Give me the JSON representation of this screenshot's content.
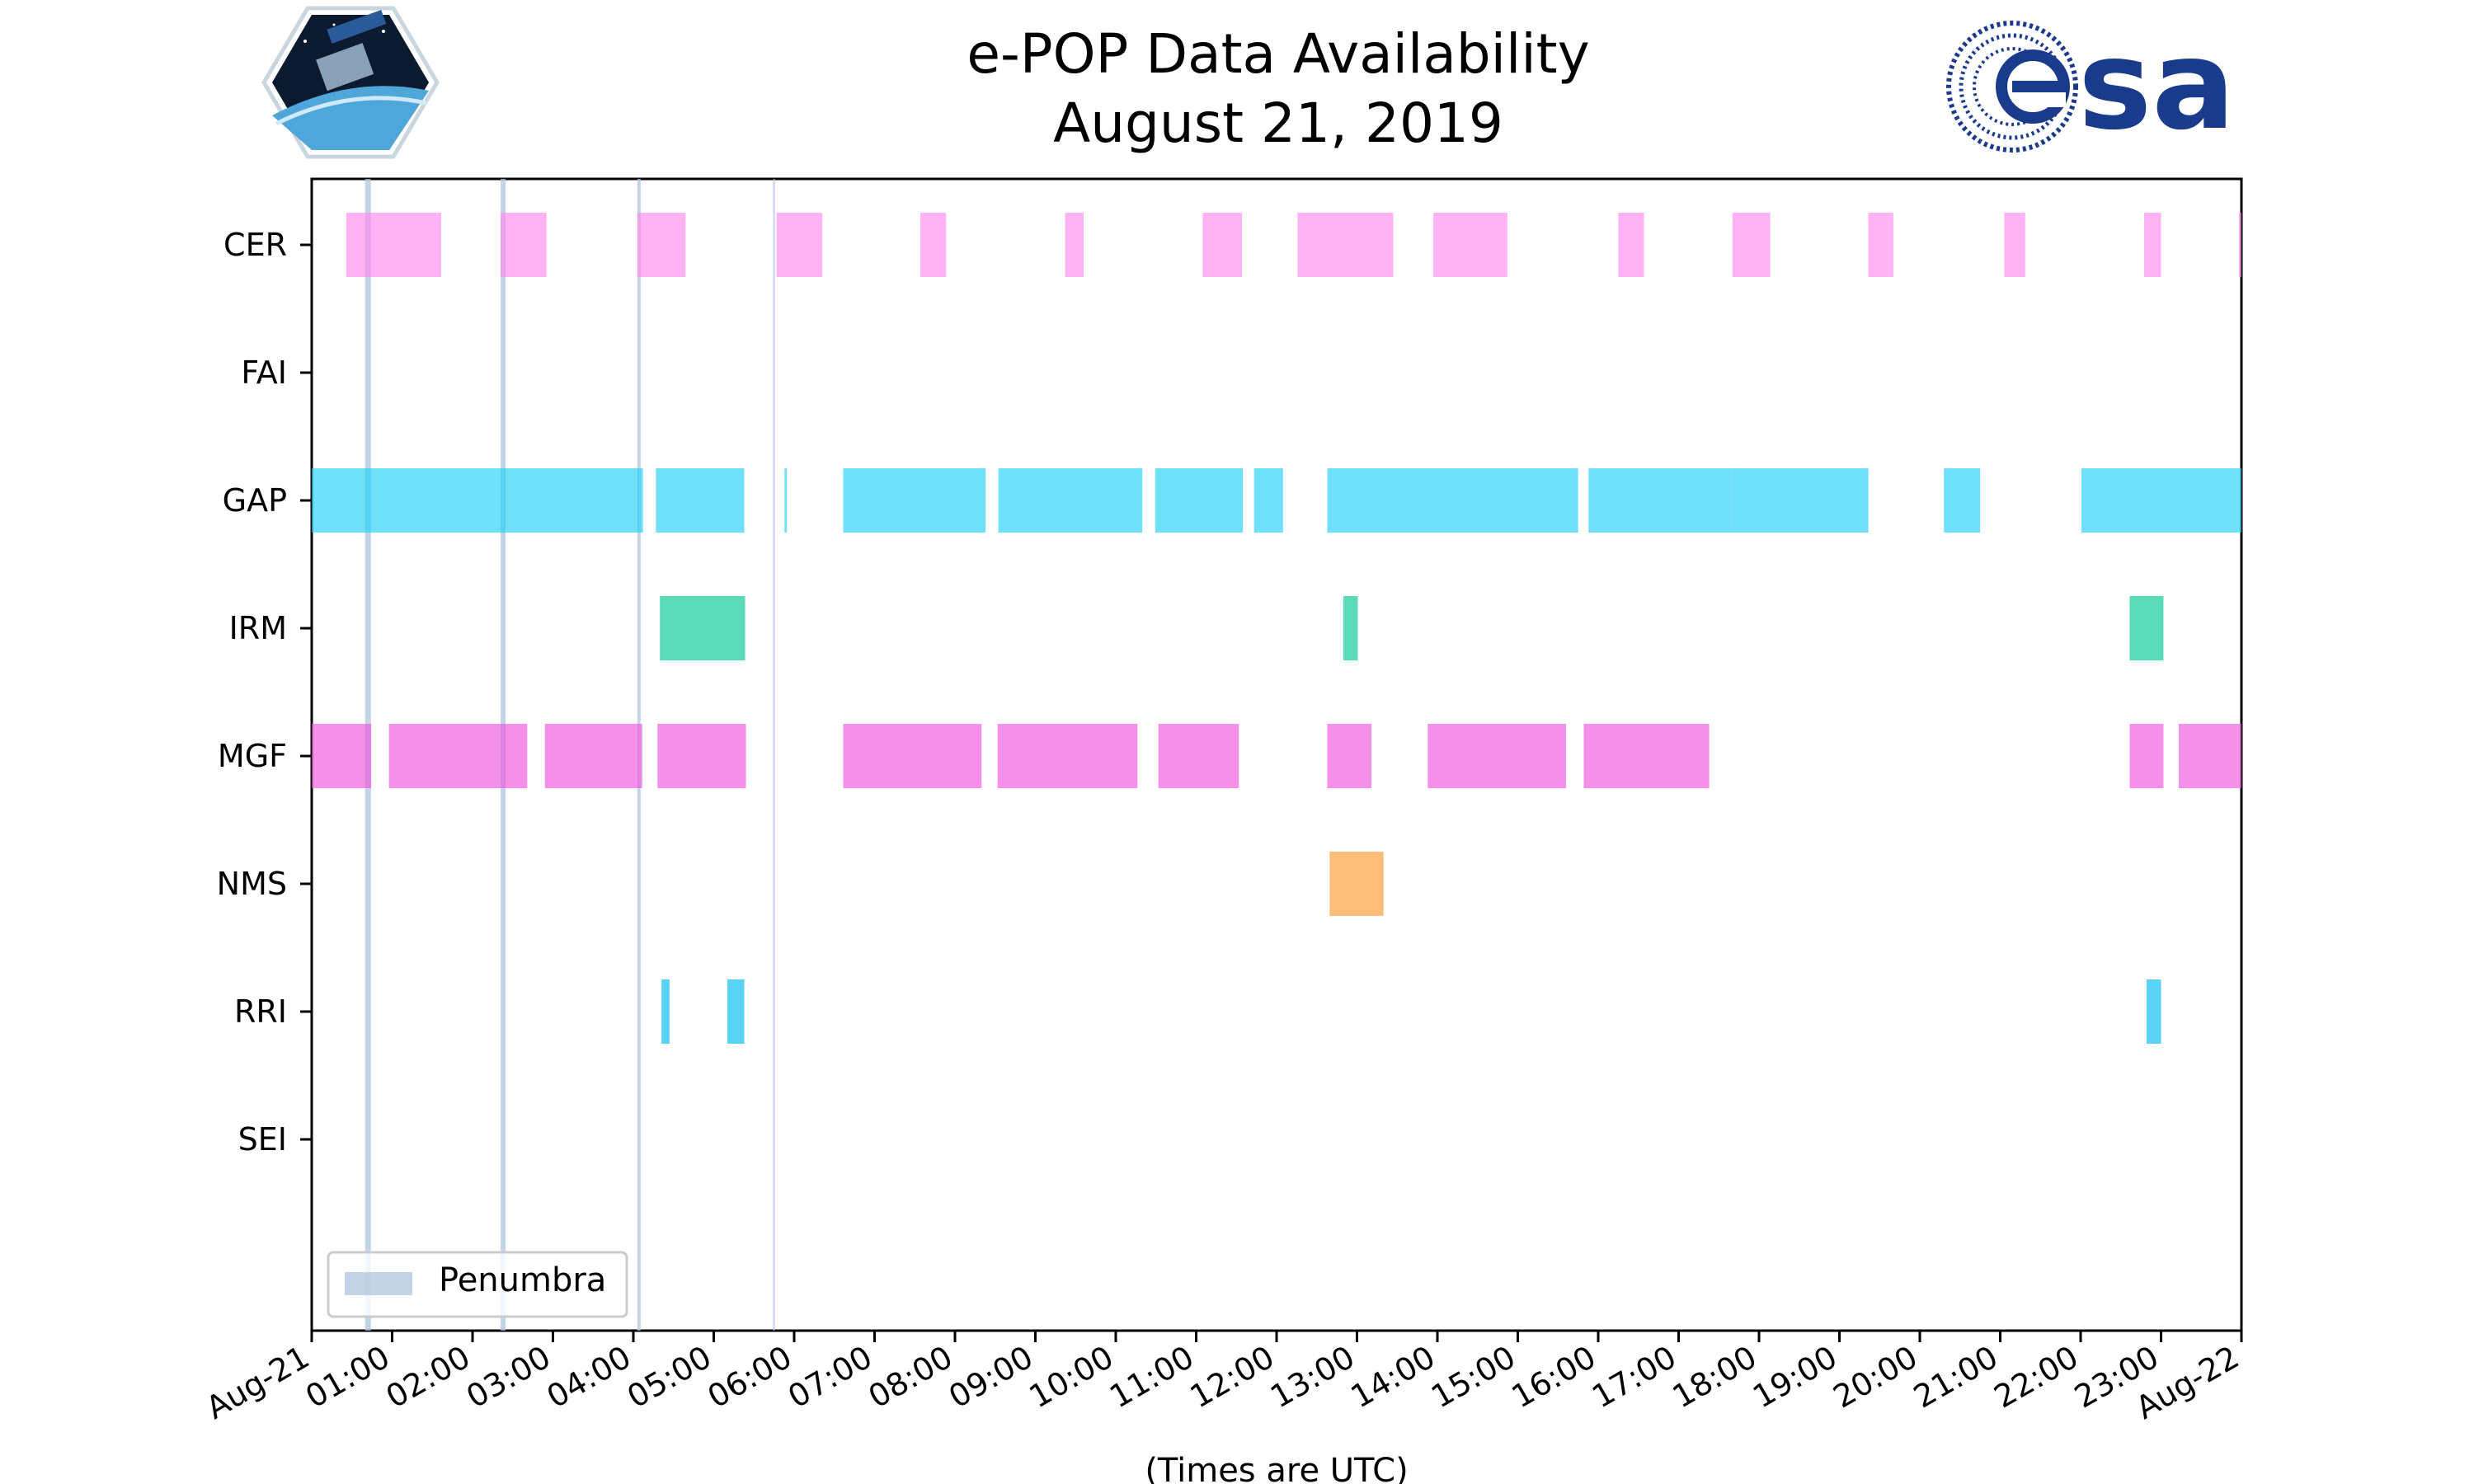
{
  "chart_data": {
    "type": "timeline",
    "title": "e-POP Data Availability",
    "subtitle": "August 21, 2019",
    "xlabel": "(Times are UTC)",
    "x_range_hours": [
      0,
      24
    ],
    "x_tick_labels": [
      "Aug-21",
      "01:00",
      "02:00",
      "03:00",
      "04:00",
      "05:00",
      "06:00",
      "07:00",
      "08:00",
      "09:00",
      "10:00",
      "11:00",
      "12:00",
      "13:00",
      "14:00",
      "15:00",
      "16:00",
      "17:00",
      "18:00",
      "19:00",
      "20:00",
      "21:00",
      "22:00",
      "23:00",
      "Aug-22"
    ],
    "instruments": [
      "CER",
      "FAI",
      "GAP",
      "IRM",
      "MGF",
      "NMS",
      "RRI",
      "SEI"
    ],
    "legend": {
      "label": "Penumbra",
      "position": "lower-left",
      "color": "#b0c4de"
    },
    "penumbra_hours": [
      0.7,
      2.38,
      4.07,
      5.75
    ],
    "series": [
      {
        "name": "CER",
        "color": "#ff88ee",
        "intervals": [
          [
            0.43,
            1.61
          ],
          [
            2.35,
            2.92
          ],
          [
            4.05,
            4.65
          ],
          [
            5.78,
            6.35
          ],
          [
            7.57,
            7.89
          ],
          [
            9.37,
            9.6
          ],
          [
            11.08,
            11.57
          ],
          [
            12.26,
            13.45
          ],
          [
            13.95,
            14.87
          ],
          [
            16.25,
            16.57
          ],
          [
            17.67,
            18.14
          ],
          [
            19.36,
            19.67
          ],
          [
            21.05,
            21.31
          ],
          [
            22.79,
            23.0
          ],
          [
            23.97,
            24.0
          ]
        ]
      },
      {
        "name": "FAI",
        "color": "#999999",
        "intervals": []
      },
      {
        "name": "GAP",
        "color": "#20d0f8",
        "intervals": [
          [
            0.0,
            4.12
          ],
          [
            4.28,
            5.38
          ],
          [
            5.88,
            5.91
          ],
          [
            6.61,
            8.38
          ],
          [
            8.54,
            10.33
          ],
          [
            10.49,
            11.58
          ],
          [
            11.72,
            12.08
          ],
          [
            12.63,
            15.75
          ],
          [
            15.88,
            17.67
          ],
          [
            17.67,
            19.36
          ],
          [
            20.3,
            20.75
          ],
          [
            22.01,
            24.0
          ]
        ]
      },
      {
        "name": "IRM",
        "color": "#00c890",
        "intervals": [
          [
            4.33,
            5.39
          ],
          [
            12.83,
            13.01
          ],
          [
            22.61,
            23.03
          ]
        ]
      },
      {
        "name": "MGF",
        "color": "#ee55dd",
        "intervals": [
          [
            0.0,
            0.74
          ],
          [
            0.96,
            2.68
          ],
          [
            2.9,
            4.11
          ],
          [
            4.3,
            5.4
          ],
          [
            6.61,
            8.33
          ],
          [
            8.53,
            10.27
          ],
          [
            10.53,
            11.53
          ],
          [
            12.63,
            13.18
          ],
          [
            13.88,
            15.6
          ],
          [
            15.82,
            17.38
          ],
          [
            22.61,
            23.03
          ],
          [
            23.22,
            24.0
          ]
        ]
      },
      {
        "name": "NMS",
        "color": "#ff9933",
        "intervals": [
          [
            12.66,
            13.33
          ]
        ]
      },
      {
        "name": "RRI",
        "color": "#00bbee",
        "intervals": [
          [
            4.35,
            4.45
          ],
          [
            5.17,
            5.38
          ],
          [
            22.82,
            23.0
          ]
        ]
      },
      {
        "name": "SEI",
        "color": "#cccccc",
        "intervals": []
      }
    ]
  }
}
